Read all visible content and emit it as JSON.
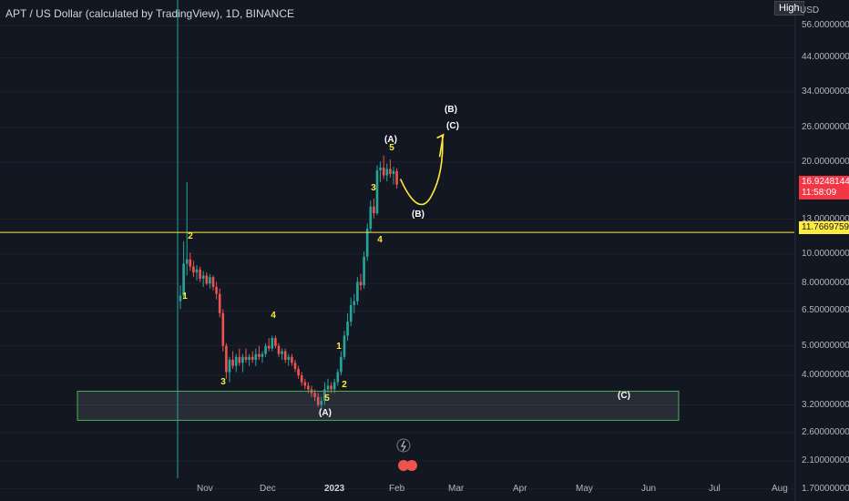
{
  "header": {
    "symbol_title": "APT / US Dollar (calculated by TradingView), 1D, BINANCE",
    "high_button": "High",
    "currency": "USD"
  },
  "price_flags": {
    "last_price": "16.92481448",
    "countdown": "11:58:09",
    "level_price": "11.76697594"
  },
  "colors": {
    "background": "#131722",
    "up": "#26a69a",
    "down": "#ef5350",
    "level_line": "#ffeb3b",
    "vertical_line": "#26a69a",
    "zone_border": "#4caf50",
    "wave_label": "#ffeb3b",
    "bracket_label": "#ffffff"
  },
  "chart_data": {
    "type": "candlestick",
    "title": "APT / US Dollar (calculated by TradingView), 1D, BINANCE",
    "y_scale": "log",
    "ylim": [
      1.55,
      68
    ],
    "y_ticks": [
      "56.00000000",
      "44.00000000",
      "34.00000000",
      "26.00000000",
      "20.00000000",
      "13.00000000",
      "10.00000000",
      "8.00000000",
      "6.50000000",
      "5.00000000",
      "4.00000000",
      "3.20000000",
      "2.60000000",
      "2.10000000",
      "1.70000000"
    ],
    "x_ticks": [
      "Nov",
      "Dec",
      "2023",
      "Feb",
      "Mar",
      "Apr",
      "May",
      "Jun",
      "Jul",
      "Aug"
    ],
    "horizontal_level": 11.76697594,
    "support_zone": [
      2.85,
      3.55
    ],
    "series": [
      {
        "ohlc": [
          [
            7.0,
            7.9,
            6.6,
            7.3
          ],
          [
            7.3,
            11.0,
            7.1,
            9.3
          ],
          [
            9.3,
            17.2,
            8.5,
            9.6
          ],
          [
            9.6,
            10.1,
            8.8,
            9.1
          ],
          [
            9.1,
            9.5,
            8.4,
            8.7
          ],
          [
            8.7,
            9.2,
            8.2,
            8.9
          ],
          [
            8.9,
            9.1,
            8.1,
            8.3
          ],
          [
            8.3,
            8.8,
            7.8,
            8.5
          ],
          [
            8.5,
            8.7,
            7.9,
            8.0
          ],
          [
            8.0,
            8.6,
            7.7,
            8.4
          ],
          [
            8.4,
            8.5,
            7.6,
            7.8
          ],
          [
            7.8,
            8.1,
            7.1,
            7.4
          ],
          [
            7.4,
            7.7,
            6.2,
            6.4
          ],
          [
            6.4,
            6.6,
            4.8,
            5.0
          ],
          [
            5.0,
            5.1,
            3.9,
            4.1
          ],
          [
            4.1,
            4.6,
            3.8,
            4.5
          ],
          [
            4.5,
            4.8,
            4.2,
            4.3
          ],
          [
            4.3,
            4.7,
            4.1,
            4.6
          ],
          [
            4.6,
            4.9,
            4.3,
            4.4
          ],
          [
            4.4,
            4.7,
            4.1,
            4.6
          ],
          [
            4.6,
            4.9,
            4.4,
            4.5
          ],
          [
            4.5,
            4.7,
            4.3,
            4.6
          ],
          [
            4.6,
            4.8,
            4.4,
            4.5
          ],
          [
            4.5,
            4.9,
            4.3,
            4.7
          ],
          [
            4.7,
            5.0,
            4.5,
            4.6
          ],
          [
            4.6,
            4.8,
            4.4,
            4.7
          ],
          [
            4.7,
            5.1,
            4.6,
            5.0
          ],
          [
            5.0,
            5.3,
            4.8,
            4.9
          ],
          [
            4.9,
            5.4,
            4.8,
            5.3
          ],
          [
            5.3,
            5.4,
            4.9,
            5.0
          ],
          [
            5.0,
            5.1,
            4.6,
            4.7
          ],
          [
            4.7,
            4.9,
            4.5,
            4.8
          ],
          [
            4.8,
            4.9,
            4.4,
            4.5
          ],
          [
            4.5,
            4.7,
            4.3,
            4.6
          ],
          [
            4.6,
            4.7,
            4.3,
            4.4
          ],
          [
            4.4,
            4.5,
            4.1,
            4.2
          ],
          [
            4.2,
            4.3,
            3.9,
            4.0
          ],
          [
            4.0,
            4.1,
            3.7,
            3.8
          ],
          [
            3.8,
            3.9,
            3.6,
            3.7
          ],
          [
            3.7,
            3.8,
            3.5,
            3.6
          ],
          [
            3.6,
            3.7,
            3.4,
            3.5
          ],
          [
            3.5,
            3.6,
            3.3,
            3.4
          ],
          [
            3.4,
            3.5,
            3.15,
            3.2
          ],
          [
            3.2,
            3.4,
            3.1,
            3.3
          ],
          [
            3.3,
            3.8,
            3.2,
            3.6
          ],
          [
            3.6,
            3.9,
            3.5,
            3.7
          ],
          [
            3.7,
            3.8,
            3.5,
            3.6
          ],
          [
            3.6,
            3.9,
            3.5,
            3.8
          ],
          [
            3.8,
            4.2,
            3.7,
            4.1
          ],
          [
            4.1,
            4.8,
            4.0,
            4.6
          ],
          [
            4.6,
            5.6,
            4.5,
            5.4
          ],
          [
            5.4,
            6.4,
            5.2,
            6.0
          ],
          [
            6.0,
            7.2,
            5.8,
            6.8
          ],
          [
            6.8,
            7.4,
            6.4,
            7.0
          ],
          [
            7.0,
            8.4,
            6.8,
            8.1
          ],
          [
            8.1,
            8.6,
            7.6,
            7.9
          ],
          [
            7.9,
            10.2,
            7.7,
            9.8
          ],
          [
            9.8,
            12.6,
            9.5,
            12.1
          ],
          [
            12.1,
            15.0,
            11.8,
            14.3
          ],
          [
            14.3,
            15.2,
            13.1,
            13.6
          ],
          [
            13.6,
            19.5,
            13.4,
            18.8
          ],
          [
            18.8,
            20.1,
            17.2,
            19.2
          ],
          [
            19.2,
            21.0,
            17.6,
            18.1
          ],
          [
            18.1,
            19.8,
            17.3,
            19.0
          ],
          [
            19.0,
            20.4,
            17.8,
            18.3
          ],
          [
            18.3,
            19.3,
            16.9,
            18.7
          ],
          [
            18.7,
            19.1,
            16.4,
            16.9
          ]
        ]
      }
    ],
    "annotations": [
      "1",
      "2",
      "3",
      "4",
      "5",
      "(A)",
      "1",
      "2",
      "3",
      "4",
      "5",
      "(A)",
      "(B)",
      "(C)",
      "(B)",
      "(C)"
    ]
  },
  "labels": {
    "wave_1a": "1",
    "wave_2a": "2",
    "wave_3a": "3",
    "wave_4a": "4",
    "wave_5a": "5",
    "wave_Aa": "(A)",
    "wave_1b": "1",
    "wave_2b": "2",
    "wave_3b": "3",
    "wave_4b": "4",
    "wave_5b": "5",
    "wave_Ab": "(A)",
    "wave_B1": "(B)",
    "wave_C1": "(C)",
    "wave_B2": "(B)",
    "wave_C2": "(C)"
  }
}
